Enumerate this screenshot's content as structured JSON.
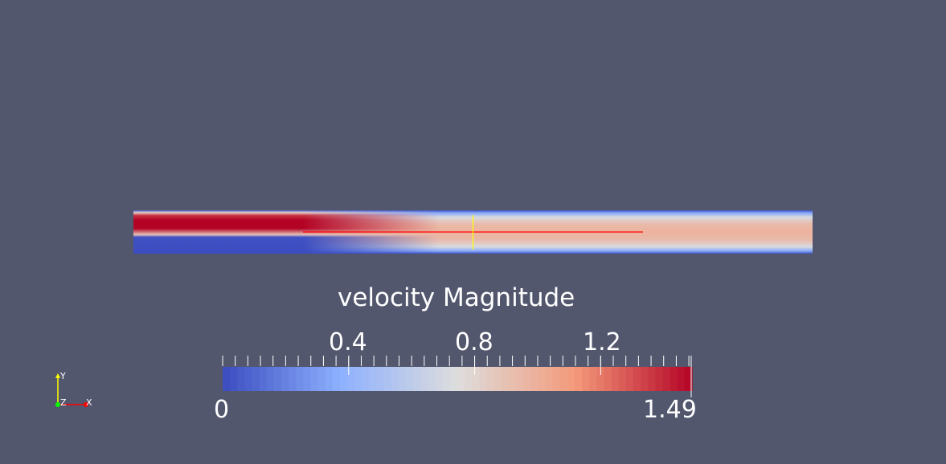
{
  "colors": {
    "background": "#52576e",
    "colormap": [
      "#3b4cc0",
      "#8db0fe",
      "#dddddd",
      "#f49a7b",
      "#b40426"
    ],
    "probe_line": "#ff0000",
    "cursor": "#ffff00",
    "axis_x": "#ff0000",
    "axis_y": "#ffff00",
    "axis_z": "#00ff00"
  },
  "colorbar": {
    "title": "velocity Magnitude",
    "range": [
      0,
      1.49
    ],
    "min_label": "0",
    "max_label": "1.49",
    "ticks": [
      {
        "value": 0.4,
        "label": "0.4"
      },
      {
        "value": 0.8,
        "label": "0.8"
      },
      {
        "value": 1.2,
        "label": "1.2"
      }
    ],
    "color_steps": 64
  },
  "field": {
    "jet_peak_velocity": 1.49,
    "developed_peak_velocity": 0.98
  },
  "orientation_axes": {
    "x": "X",
    "y": "Y",
    "z": "Z"
  }
}
